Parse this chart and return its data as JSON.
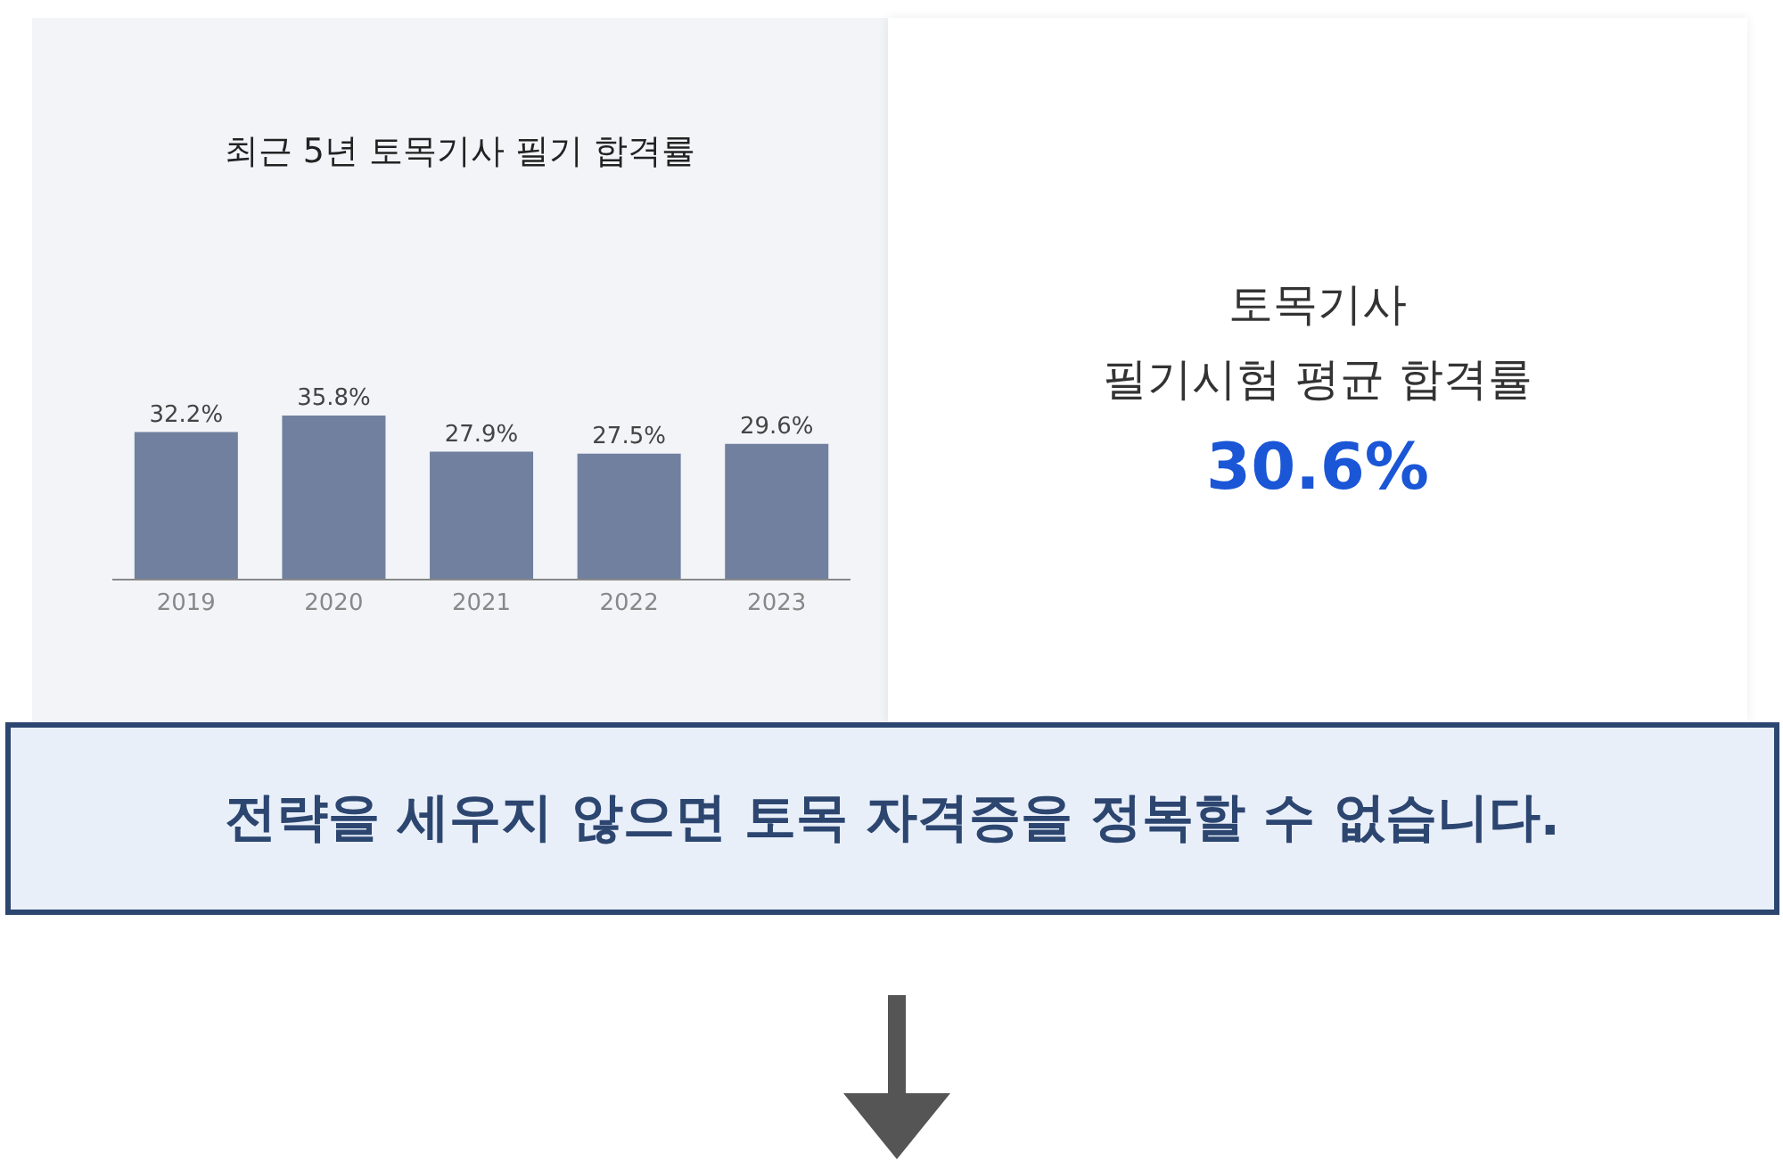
{
  "chart_data": [
    {
      "type": "bar",
      "title": "최근 5년 토목기사 필기 합격률",
      "categories": [
        "2019",
        "2020",
        "2021",
        "2022",
        "2023"
      ],
      "values": [
        32.2,
        35.8,
        27.9,
        27.5,
        29.6
      ],
      "value_labels": [
        "32.2%",
        "35.8%",
        "27.9%",
        "27.5%",
        "29.6%"
      ],
      "color": "#71809f",
      "tick_labels": "x"
    },
    {
      "type": "other",
      "title": "토목기사\n필기시험 평균 합격률",
      "annotations": [
        "30.6%",
        "전략을 세우지 않으면 토목 자격증을 정복할 수 없습니다."
      ]
    }
  ]
}
